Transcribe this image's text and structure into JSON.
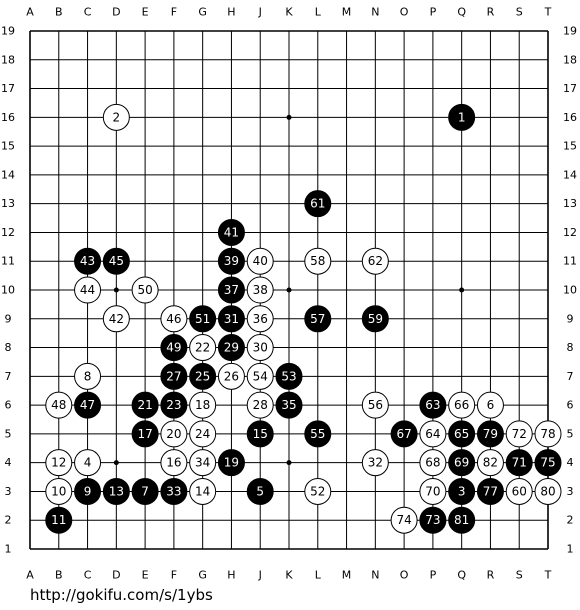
{
  "board": {
    "columns": [
      "A",
      "B",
      "C",
      "D",
      "E",
      "F",
      "G",
      "H",
      "J",
      "K",
      "L",
      "M",
      "N",
      "O",
      "P",
      "Q",
      "R",
      "S",
      "T"
    ],
    "rows": [
      "19",
      "18",
      "17",
      "16",
      "15",
      "14",
      "13",
      "12",
      "11",
      "10",
      "9",
      "8",
      "7",
      "6",
      "5",
      "4",
      "3",
      "2",
      "1"
    ],
    "stones": [
      {
        "label": "1",
        "color": "black",
        "point": "Q16"
      },
      {
        "label": "2",
        "color": "white",
        "point": "D16"
      },
      {
        "label": "3",
        "color": "black",
        "point": "Q3"
      },
      {
        "label": "4",
        "color": "white",
        "point": "C4"
      },
      {
        "label": "5",
        "color": "black",
        "point": "J3"
      },
      {
        "label": "6",
        "color": "white",
        "point": "R6"
      },
      {
        "label": "7",
        "color": "black",
        "point": "E3"
      },
      {
        "label": "8",
        "color": "white",
        "point": "C7"
      },
      {
        "label": "9",
        "color": "black",
        "point": "C3"
      },
      {
        "label": "10",
        "color": "white",
        "point": "B3"
      },
      {
        "label": "11",
        "color": "black",
        "point": "B2"
      },
      {
        "label": "12",
        "color": "white",
        "point": "B4"
      },
      {
        "label": "13",
        "color": "black",
        "point": "D3"
      },
      {
        "label": "14",
        "color": "white",
        "point": "G3"
      },
      {
        "label": "15",
        "color": "black",
        "point": "J5"
      },
      {
        "label": "16",
        "color": "white",
        "point": "F4"
      },
      {
        "label": "17",
        "color": "black",
        "point": "E5"
      },
      {
        "label": "18",
        "color": "white",
        "point": "G6"
      },
      {
        "label": "19",
        "color": "black",
        "point": "H4"
      },
      {
        "label": "20",
        "color": "white",
        "point": "F5"
      },
      {
        "label": "21",
        "color": "black",
        "point": "E6"
      },
      {
        "label": "22",
        "color": "white",
        "point": "G8"
      },
      {
        "label": "23",
        "color": "black",
        "point": "F6"
      },
      {
        "label": "24",
        "color": "white",
        "point": "G5"
      },
      {
        "label": "25",
        "color": "black",
        "point": "G7"
      },
      {
        "label": "26",
        "color": "white",
        "point": "H7"
      },
      {
        "label": "27",
        "color": "black",
        "point": "F7"
      },
      {
        "label": "28",
        "color": "white",
        "point": "J6"
      },
      {
        "label": "29",
        "color": "black",
        "point": "H8"
      },
      {
        "label": "30",
        "color": "white",
        "point": "J8"
      },
      {
        "label": "31",
        "color": "black",
        "point": "H9"
      },
      {
        "label": "32",
        "color": "white",
        "point": "N4"
      },
      {
        "label": "33",
        "color": "black",
        "point": "F3"
      },
      {
        "label": "34",
        "color": "white",
        "point": "G4"
      },
      {
        "label": "35",
        "color": "black",
        "point": "K6"
      },
      {
        "label": "36",
        "color": "white",
        "point": "J9"
      },
      {
        "label": "37",
        "color": "black",
        "point": "H10"
      },
      {
        "label": "38",
        "color": "white",
        "point": "J10"
      },
      {
        "label": "39",
        "color": "black",
        "point": "H11"
      },
      {
        "label": "40",
        "color": "white",
        "point": "J11"
      },
      {
        "label": "41",
        "color": "black",
        "point": "H12"
      },
      {
        "label": "42",
        "color": "white",
        "point": "D9"
      },
      {
        "label": "43",
        "color": "black",
        "point": "C11"
      },
      {
        "label": "44",
        "color": "white",
        "point": "C10"
      },
      {
        "label": "45",
        "color": "black",
        "point": "D11"
      },
      {
        "label": "46",
        "color": "white",
        "point": "F9"
      },
      {
        "label": "47",
        "color": "black",
        "point": "C6"
      },
      {
        "label": "48",
        "color": "white",
        "point": "B6"
      },
      {
        "label": "49",
        "color": "black",
        "point": "F8"
      },
      {
        "label": "50",
        "color": "white",
        "point": "E10"
      },
      {
        "label": "51",
        "color": "black",
        "point": "G9"
      },
      {
        "label": "52",
        "color": "white",
        "point": "L3"
      },
      {
        "label": "53",
        "color": "black",
        "point": "K7"
      },
      {
        "label": "54",
        "color": "white",
        "point": "J7"
      },
      {
        "label": "55",
        "color": "black",
        "point": "L5"
      },
      {
        "label": "56",
        "color": "white",
        "point": "N6"
      },
      {
        "label": "57",
        "color": "black",
        "point": "L9"
      },
      {
        "label": "58",
        "color": "white",
        "point": "L11"
      },
      {
        "label": "59",
        "color": "black",
        "point": "N9"
      },
      {
        "label": "60",
        "color": "white",
        "point": "S3"
      },
      {
        "label": "61",
        "color": "black",
        "point": "L13"
      },
      {
        "label": "62",
        "color": "white",
        "point": "N11"
      },
      {
        "label": "63",
        "color": "black",
        "point": "P6"
      },
      {
        "label": "64",
        "color": "white",
        "point": "P5"
      },
      {
        "label": "65",
        "color": "black",
        "point": "Q5"
      },
      {
        "label": "66",
        "color": "white",
        "point": "Q6"
      },
      {
        "label": "67",
        "color": "black",
        "point": "O5"
      },
      {
        "label": "68",
        "color": "white",
        "point": "P4"
      },
      {
        "label": "69",
        "color": "black",
        "point": "Q4"
      },
      {
        "label": "70",
        "color": "white",
        "point": "P3"
      },
      {
        "label": "71",
        "color": "black",
        "point": "S4"
      },
      {
        "label": "72",
        "color": "white",
        "point": "S5"
      },
      {
        "label": "73",
        "color": "black",
        "point": "P2"
      },
      {
        "label": "74",
        "color": "white",
        "point": "O2"
      },
      {
        "label": "75",
        "color": "black",
        "point": "T4"
      },
      {
        "label": "77",
        "color": "black",
        "point": "R3"
      },
      {
        "label": "78",
        "color": "white",
        "point": "T5"
      },
      {
        "label": "79",
        "color": "black",
        "point": "R5"
      },
      {
        "label": "80",
        "color": "white",
        "point": "T3"
      },
      {
        "label": "81",
        "color": "black",
        "point": "Q2"
      },
      {
        "label": "82",
        "color": "white",
        "point": "R4"
      }
    ]
  },
  "footer": {
    "url": "http://gokifu.com/s/1ybs"
  }
}
